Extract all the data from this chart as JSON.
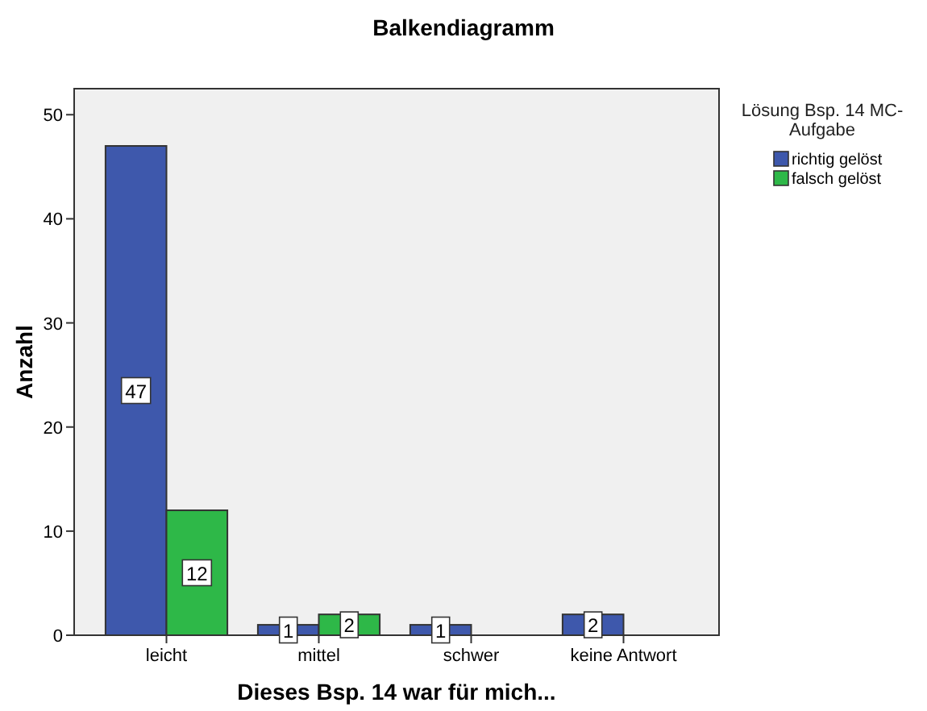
{
  "chart_data": {
    "type": "bar",
    "title": "Balkendiagramm",
    "xlabel": "Dieses Bsp. 14 war für mich...",
    "ylabel": "Anzahl",
    "legend_title": "Lösung Bsp. 14 MC-Aufgabe",
    "categories": [
      "leicht",
      "mittel",
      "schwer",
      "keine Antwort"
    ],
    "series": [
      {
        "name": "richtig gelöst",
        "color": "#3e58ac",
        "values": [
          47,
          1,
          1,
          2
        ]
      },
      {
        "name": "falsch gelöst",
        "color": "#2eb848",
        "values": [
          12,
          2,
          null,
          null
        ]
      }
    ],
    "ylim": [
      0,
      52.5
    ],
    "yticks": [
      0,
      10,
      20,
      30,
      40,
      50
    ],
    "grid": false,
    "legend": "right",
    "data_labels": true
  }
}
